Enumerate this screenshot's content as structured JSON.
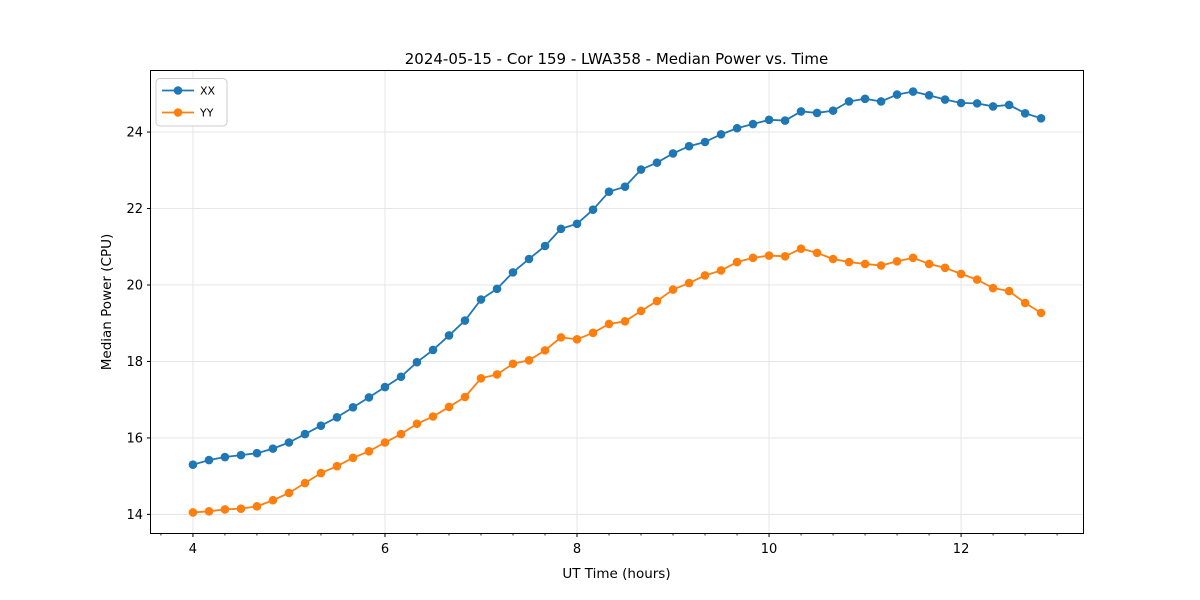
{
  "chart_data": {
    "type": "line",
    "title": "2024-05-15 - Cor 159 - LWA358 - Median Power vs. Time",
    "xlabel": "UT Time (hours)",
    "ylabel": "Median Power (CPU)",
    "grid": true,
    "legend_position": "upper-left",
    "xlim": [
      3.558,
      13.275
    ],
    "ylim": [
      13.5,
      25.61
    ],
    "x_ticks": [
      4,
      6,
      8,
      10,
      12
    ],
    "x_minor_tick_step_hours": 0.3333,
    "y_ticks": [
      14,
      16,
      18,
      20,
      22,
      24
    ],
    "x_sample_interval_minutes": 10,
    "x": [
      4.0,
      4.167,
      4.333,
      4.5,
      4.667,
      4.833,
      5.0,
      5.167,
      5.333,
      5.5,
      5.667,
      5.833,
      6.0,
      6.167,
      6.333,
      6.5,
      6.667,
      6.833,
      7.0,
      7.167,
      7.333,
      7.5,
      7.667,
      7.833,
      8.0,
      8.167,
      8.333,
      8.5,
      8.667,
      8.833,
      9.0,
      9.167,
      9.333,
      9.5,
      9.667,
      9.833,
      10.0,
      10.167,
      10.333,
      10.5,
      10.667,
      10.833,
      11.0,
      11.167,
      11.333,
      11.5,
      11.667,
      11.833,
      12.0,
      12.167,
      12.333,
      12.5,
      12.667,
      12.833
    ],
    "series": [
      {
        "name": "XX",
        "color": "#1f77b4",
        "values": [
          15.3,
          15.42,
          15.5,
          15.55,
          15.6,
          15.72,
          15.88,
          16.1,
          16.32,
          16.54,
          16.8,
          17.06,
          17.33,
          17.6,
          17.98,
          18.3,
          18.68,
          19.07,
          19.62,
          19.9,
          20.33,
          20.68,
          21.02,
          21.47,
          21.6,
          21.97,
          22.44,
          22.57,
          23.02,
          23.2,
          23.44,
          23.63,
          23.74,
          23.94,
          24.1,
          24.21,
          24.32,
          24.3,
          24.54,
          24.5,
          24.56,
          24.8,
          24.87,
          24.8,
          24.98,
          25.06,
          24.96,
          24.85,
          24.76,
          24.75,
          24.67,
          24.71,
          24.49,
          24.36
        ]
      },
      {
        "name": "YY",
        "color": "#ff7f0e",
        "values": [
          14.05,
          14.08,
          14.13,
          14.15,
          14.21,
          14.37,
          14.56,
          14.82,
          15.08,
          15.26,
          15.48,
          15.65,
          15.88,
          16.1,
          16.37,
          16.56,
          16.81,
          17.07,
          17.56,
          17.66,
          17.94,
          18.03,
          18.29,
          18.63,
          18.58,
          18.75,
          18.98,
          19.05,
          19.32,
          19.58,
          19.88,
          20.05,
          20.25,
          20.38,
          20.6,
          20.71,
          20.77,
          20.75,
          20.95,
          20.84,
          20.68,
          20.6,
          20.55,
          20.51,
          20.62,
          20.71,
          20.55,
          20.45,
          20.29,
          20.14,
          19.92,
          19.84,
          19.53,
          19.27
        ]
      }
    ]
  }
}
